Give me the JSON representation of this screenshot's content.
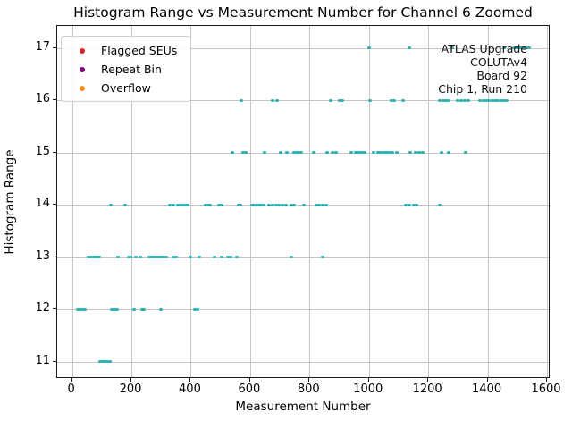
{
  "chart_data": {
    "type": "scatter",
    "title": "Histogram Range vs Measurement Number for Channel 6 Zoomed",
    "xlabel": "Measurement Number",
    "ylabel": "Histogram Range",
    "xlim": [
      -50,
      1612
    ],
    "ylim": [
      10.67,
      17.42
    ],
    "xticks": [
      0,
      200,
      400,
      600,
      800,
      1000,
      1200,
      1400,
      1600
    ],
    "yticks": [
      11,
      12,
      13,
      14,
      15,
      16,
      17
    ],
    "grid": true,
    "marker_color": "#2ab0b0",
    "grid_color": "#c6c6c6",
    "legend": {
      "position": "upper-left",
      "entries": [
        {
          "label": "Flagged SEUs",
          "color": "#d62728",
          "points": []
        },
        {
          "label": "Repeat Bin",
          "color": "#800080",
          "points": []
        },
        {
          "label": "Overflow",
          "color": "#ff9015",
          "points": []
        }
      ]
    },
    "annotation": {
      "align": "right",
      "lines": [
        "ATLAS Upgrade",
        "COLUTAv4",
        "Board 92",
        "Chip 1, Run 210"
      ]
    },
    "series": [
      {
        "name": "histogram-range-points",
        "rows": [
          {
            "range": 17,
            "measurements": [
              1000,
              1135,
              1280,
              1455,
              1490,
              1497,
              1504,
              1511,
              1518,
              1525,
              1532,
              1539
            ]
          },
          {
            "range": 16,
            "measurements": [
              570,
              675,
              690,
              870,
              900,
              910,
              1005,
              1075,
              1085,
              1115,
              1240,
              1250,
              1260,
              1270,
              1300,
              1310,
              1322,
              1334,
              1375,
              1385,
              1395,
              1405,
              1415,
              1425,
              1435,
              1445,
              1455,
              1465
            ]
          },
          {
            "range": 15,
            "measurements": [
              540,
              575,
              585,
              650,
              703,
              723,
              748,
              756,
              764,
              772,
              815,
              860,
              878,
              888,
              940,
              955,
              963,
              971,
              979,
              987,
              1015,
              1030,
              1038,
              1046,
              1054,
              1062,
              1070,
              1078,
              1095,
              1140,
              1158,
              1168,
              1180,
              1245,
              1270,
              1325
            ]
          },
          {
            "range": 14,
            "measurements": [
              130,
              180,
              330,
              340,
              355,
              365,
              375,
              383,
              391,
              450,
              458,
              466,
              495,
              503,
              560,
              568,
              605,
              613,
              621,
              629,
              637,
              645,
              665,
              675,
              688,
              698,
              710,
              720,
              738,
              748,
              780,
              822,
              832,
              845,
              855,
              1125,
              1135,
              1150,
              1160,
              1240
            ]
          },
          {
            "range": 13,
            "measurements": [
              55,
              62,
              70,
              78,
              86,
              93,
              155,
              190,
              198,
              215,
              230,
              260,
              268,
              276,
              284,
              292,
              300,
              308,
              316,
              340,
              350,
              400,
              430,
              480,
              505,
              525,
              533,
              555,
              740,
              845
            ]
          },
          {
            "range": 12,
            "measurements": [
              18,
              26,
              34,
              42,
              135,
              143,
              151,
              210,
              235,
              243,
              300,
              415,
              423
            ]
          },
          {
            "range": 11,
            "measurements": [
              95,
              103,
              111,
              119,
              127
            ]
          }
        ]
      }
    ]
  }
}
